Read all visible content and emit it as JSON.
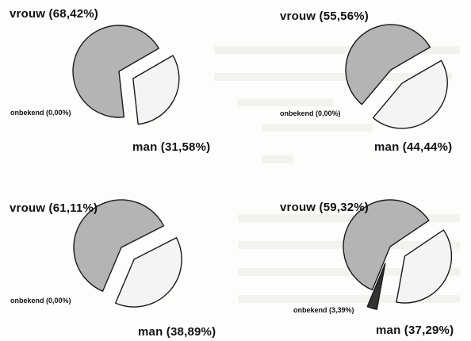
{
  "chart_data": [
    {
      "type": "pie",
      "categories": [
        "vrouw",
        "man",
        "onbekend"
      ],
      "values": [
        68.42,
        31.58,
        0.0
      ],
      "labels": [
        "vrouw (68,42%)",
        "man (31,58%)",
        "onbekend (0,00%)"
      ],
      "exploded": "man",
      "colors": {
        "vrouw": "#b4b4b4",
        "man": "#f4f4f4",
        "onbekend": "#333333"
      }
    },
    {
      "type": "pie",
      "categories": [
        "vrouw",
        "man",
        "onbekend"
      ],
      "values": [
        55.56,
        44.44,
        0.0
      ],
      "labels": [
        "vrouw (55,56%)",
        "man (44,44%)",
        "onbekend (0,00%)"
      ],
      "exploded": "man",
      "colors": {
        "vrouw": "#b4b4b4",
        "man": "#f4f4f4",
        "onbekend": "#333333"
      }
    },
    {
      "type": "pie",
      "categories": [
        "vrouw",
        "man",
        "onbekend"
      ],
      "values": [
        61.11,
        38.89,
        0.0
      ],
      "labels": [
        "vrouw (61,11%)",
        "man (38,89%)",
        "onbekend (0,00%)"
      ],
      "exploded": "man",
      "colors": {
        "vrouw": "#b4b4b4",
        "man": "#f4f4f4",
        "onbekend": "#333333"
      }
    },
    {
      "type": "pie",
      "categories": [
        "vrouw",
        "man",
        "onbekend"
      ],
      "values": [
        59.32,
        37.29,
        3.39
      ],
      "labels": [
        "vrouw (59,32%)",
        "man (37,29%)",
        "onbekend (3,39%)"
      ],
      "exploded": "onbekend",
      "colors": {
        "vrouw": "#b4b4b4",
        "man": "#f4f4f4",
        "onbekend": "#333333"
      }
    }
  ]
}
